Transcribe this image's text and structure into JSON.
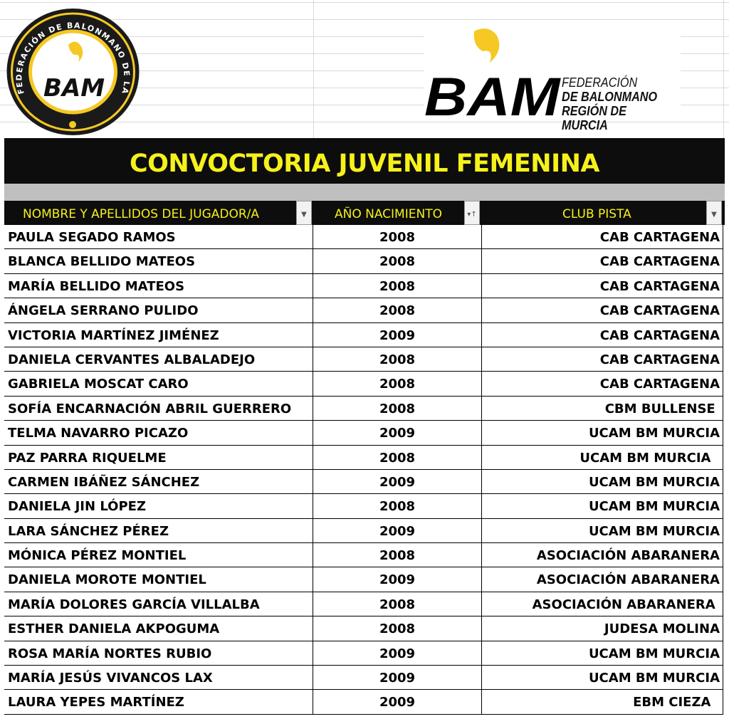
{
  "logos": {
    "seal_text": "FEDERACIÓN DE BALONMANO DE LA REGIÓN DE MURCIA",
    "seal_mark": "BAM",
    "main_mark": "BAM",
    "main_lines": [
      "FEDERACIÓN",
      "DE BALONMANO",
      "REGIÓN DE MURCIA"
    ]
  },
  "title": "CONVOCTORIA JUVENIL FEMENINA",
  "colors": {
    "accent": "#f6f11b",
    "header_bg": "#0d0d0d",
    "logo_yellow": "#f5c823"
  },
  "columns": [
    {
      "label": "NOMBRE Y APELLIDOS DEL JUGADOR/A",
      "filter_icon": "filter-dropdown-icon"
    },
    {
      "label": "AÑO NACIMIENTO",
      "filter_icon": "sort-ascending-filter-icon"
    },
    {
      "label": "CLUB PISTA",
      "filter_icon": "filter-dropdown-icon"
    }
  ],
  "rows": [
    {
      "name": "PAULA SEGADO RAMOS",
      "year": "2008",
      "club": "CAB CARTAGENA"
    },
    {
      "name": "BLANCA BELLIDO MATEOS",
      "year": "2008",
      "club": "CAB CARTAGENA"
    },
    {
      "name": "MARÍA BELLIDO MATEOS",
      "year": "2008",
      "club": "CAB CARTAGENA"
    },
    {
      "name": "ÁNGELA SERRANO PULIDO",
      "year": "2008",
      "club": "CAB CARTAGENA"
    },
    {
      "name": "VICTORIA MARTÍNEZ JIMÉNEZ",
      "year": "2009",
      "club": "CAB CARTAGENA"
    },
    {
      "name": "DANIELA CERVANTES ALBALADEJO",
      "year": "2008",
      "club": "CAB CARTAGENA"
    },
    {
      "name": "GABRIELA MOSCAT CARO",
      "year": "2008",
      "club": "CAB CARTAGENA"
    },
    {
      "name": "SOFÍA ENCARNACIÓN ABRIL GUERRERO",
      "year": "2008",
      "club": "CBM BULLENSE "
    },
    {
      "name": "TELMA NAVARRO PICAZO",
      "year": "2009",
      "club": "UCAM BM MURCIA"
    },
    {
      "name": "PAZ PARRA RIQUELME",
      "year": "2008",
      "club": "UCAM BM MURCIA  "
    },
    {
      "name": "CARMEN IBÁÑEZ SÁNCHEZ",
      "year": "2009",
      "club": "UCAM BM MURCIA"
    },
    {
      "name": "DANIELA JIN LÓPEZ",
      "year": "2008",
      "club": "UCAM BM MURCIA"
    },
    {
      "name": "LARA SÁNCHEZ PÉREZ",
      "year": "2009",
      "club": "UCAM BM MURCIA"
    },
    {
      "name": "MÓNICA PÉREZ MONTIEL",
      "year": "2008",
      "club": "ASOCIACIÓN ABARANERA"
    },
    {
      "name": "DANIELA MOROTE MONTIEL",
      "year": "2009",
      "club": "ASOCIACIÓN ABARANERA"
    },
    {
      "name": "MARÍA DOLORES GARCÍA VILLALBA",
      "year": "2008",
      "club": "ASOCIACIÓN ABARANERA "
    },
    {
      "name": "ESTHER DANIELA AKPOGUMA",
      "year": "2008",
      "club": "JUDESA MOLINA"
    },
    {
      "name": "ROSA MARÍA NORTES RUBIO",
      "year": "2009",
      "club": "UCAM BM MURCIA"
    },
    {
      "name": "MARÍA JESÚS VIVANCOS LAX",
      "year": "2009",
      "club": "UCAM BM MURCIA"
    },
    {
      "name": "LAURA YEPES MARTÍNEZ",
      "year": "2009",
      "club": "EBM CIEZA  "
    }
  ]
}
